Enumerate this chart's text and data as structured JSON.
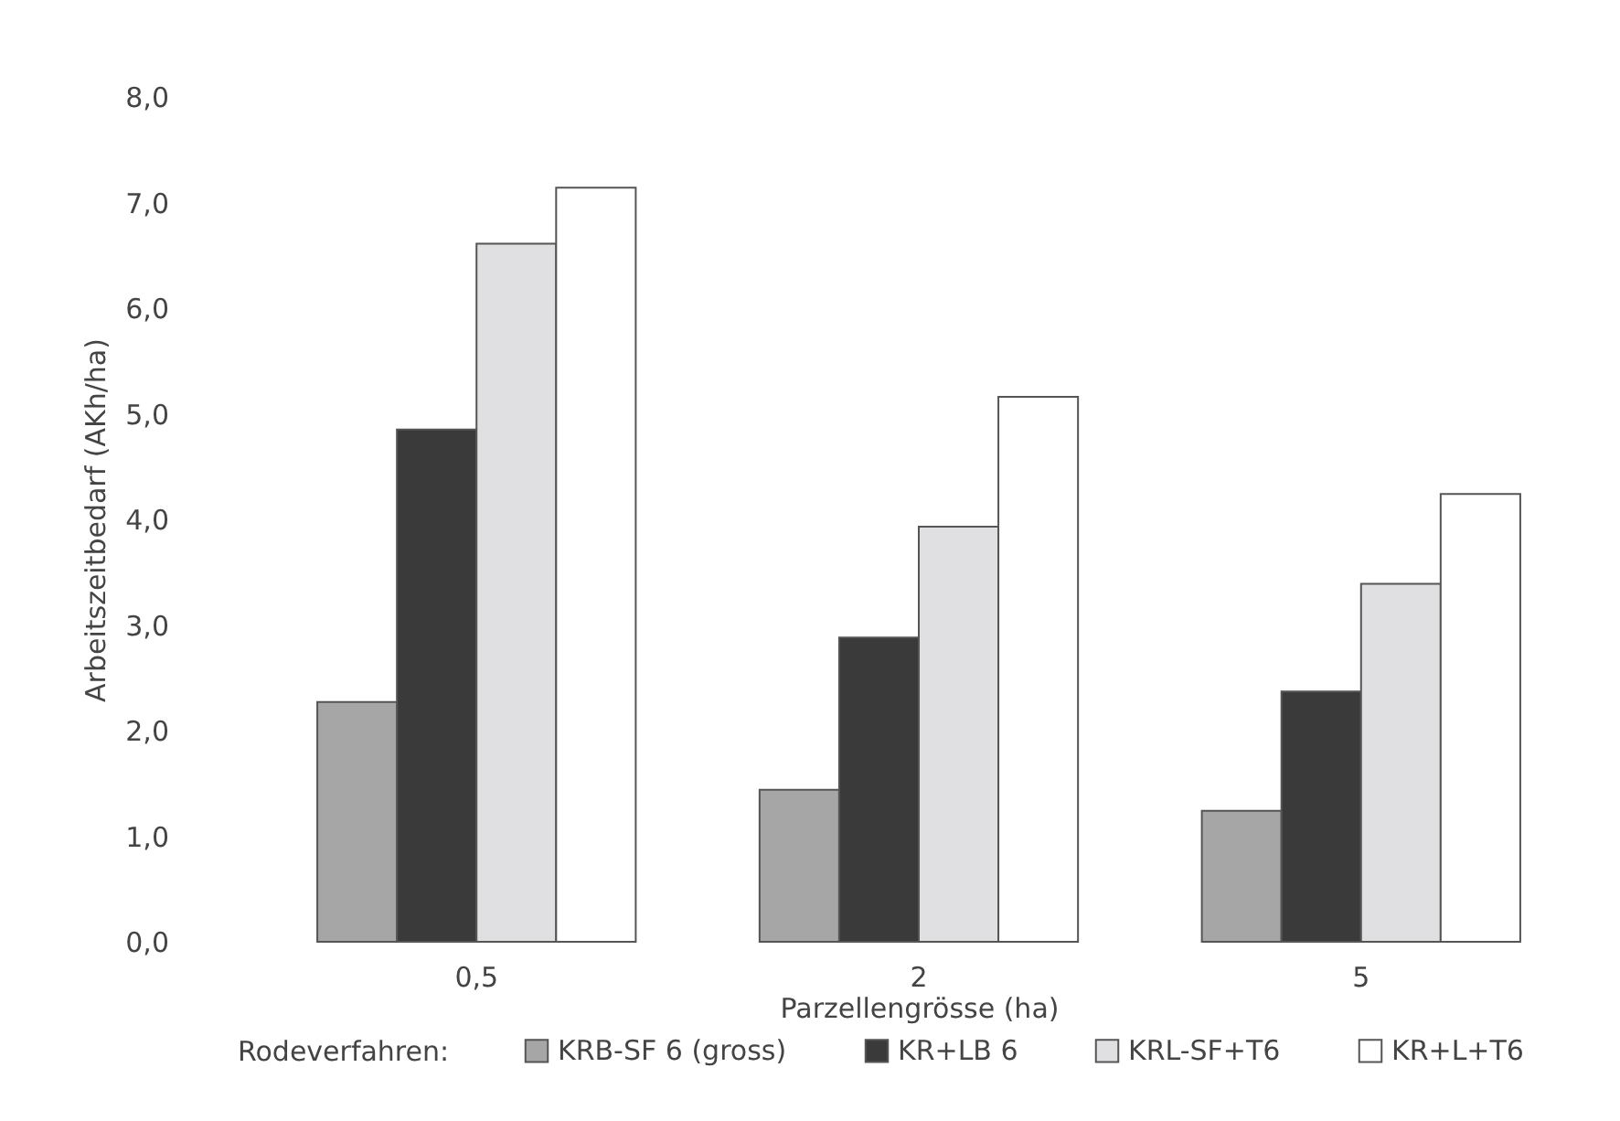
{
  "chart_data": {
    "type": "bar",
    "xlabel": "Parzellengrösse (ha)",
    "ylabel": "Arbeitszeitbedarf (AKh/ha)",
    "legend_title": "Rodeverfahren:",
    "categories": [
      "0,5",
      "2",
      "5"
    ],
    "series": [
      {
        "name": "KRB-SF 6 (gross)",
        "color": "#a6a6a6",
        "values": [
          2.27,
          1.44,
          1.24
        ]
      },
      {
        "name": "KR+LB 6",
        "color": "#3a3a3a",
        "values": [
          4.85,
          2.88,
          2.37
        ]
      },
      {
        "name": "KRL-SF+T6",
        "color": "#e0e0e2",
        "values": [
          6.61,
          3.93,
          3.39
        ]
      },
      {
        "name": "KR+L+T6",
        "color": "#ffffff",
        "values": [
          7.14,
          5.16,
          4.24
        ]
      }
    ],
    "ylim": [
      0,
      8
    ],
    "yticks": [
      {
        "value": 0,
        "label": "0,0"
      },
      {
        "value": 1,
        "label": "1,0"
      },
      {
        "value": 2,
        "label": "2,0"
      },
      {
        "value": 3,
        "label": "3,0"
      },
      {
        "value": 4,
        "label": "4,0"
      },
      {
        "value": 5,
        "label": "5,0"
      },
      {
        "value": 6,
        "label": "6,0"
      },
      {
        "value": 7,
        "label": "7,0"
      },
      {
        "value": 8,
        "label": "8,0"
      }
    ],
    "grid": false,
    "legend": "bottom"
  }
}
